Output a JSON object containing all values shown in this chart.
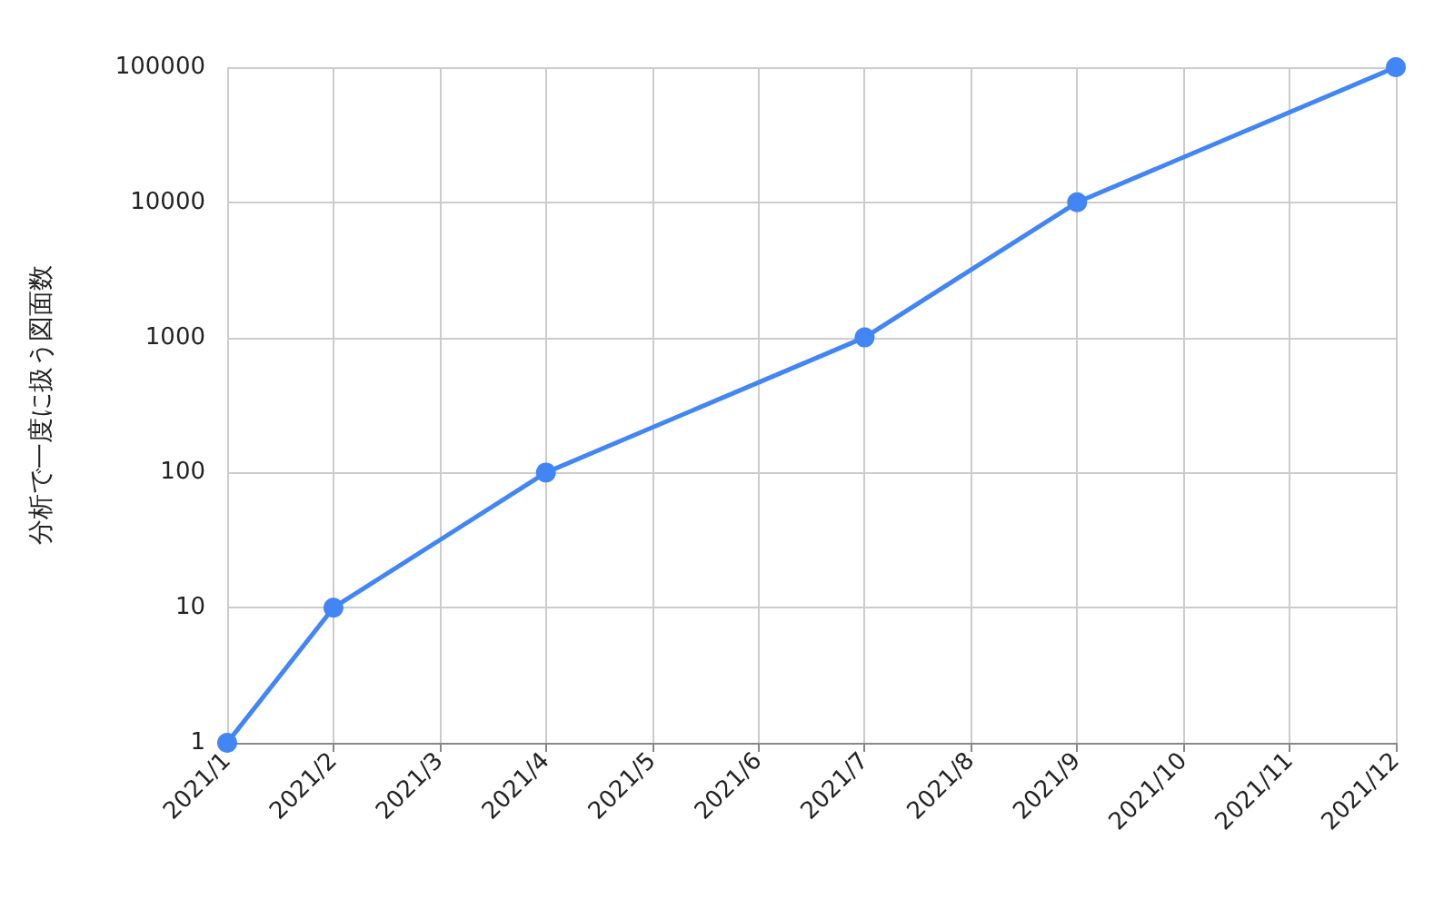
{
  "chart_data": {
    "type": "line",
    "ylabel": "分析で一度に扱う図面数",
    "categories": [
      "2021/1",
      "2021/2",
      "2021/3",
      "2021/4",
      "2021/5",
      "2021/6",
      "2021/7",
      "2021/8",
      "2021/9",
      "2021/10",
      "2021/11",
      "2021/12"
    ],
    "series": [
      {
        "color": "#4285f4",
        "values": [
          1,
          10,
          null,
          100,
          null,
          null,
          1000,
          null,
          10000,
          null,
          null,
          100000
        ]
      }
    ],
    "log": true,
    "ylim": [
      1,
      100000
    ],
    "yticks": [
      1,
      10,
      100,
      1000,
      10000,
      100000
    ],
    "grid": true,
    "marker": "circle",
    "line_style": "solid"
  }
}
